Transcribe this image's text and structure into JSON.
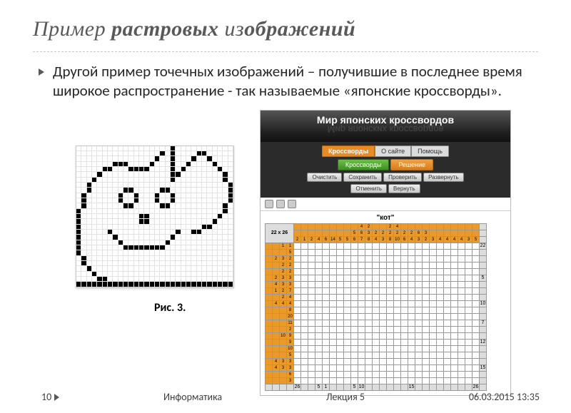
{
  "title_regular_1": "Пример ",
  "title_bold_1": "растровых",
  "title_regular_2": " из",
  "title_bold_2": "ображений",
  "body": "Другой пример точечных изображений – получившие в последнее время широкое распространение - так называемые «японские кроссворды».",
  "caption": "Рис. 3.",
  "footer": {
    "page": "10",
    "subject": "Информатика",
    "lecture": "Лекция 5",
    "datetime": "06.03.2015 13:35"
  },
  "app": {
    "site_title": "Мир японских кроссвордов",
    "nav": [
      "Кроссворды",
      "О сайте",
      "Помощь"
    ],
    "btn_krossvordy": "Кроссворды",
    "btn_reshenie": "Решение",
    "btns_small": [
      "Очистить",
      "Сохранить",
      "Проверить",
      "Развернуть"
    ],
    "btns_mini": [
      "Отменить",
      "Вернуть"
    ],
    "puzzle_title": "\"кот\"",
    "corner_label": "22 x 26",
    "rows": 22,
    "cols": 26,
    "clue_cols_depth": 4,
    "clue_rows_depth": 4,
    "col_clues_top3": [
      "",
      "",
      "",
      "",
      "",
      "",
      "",
      "",
      "",
      "4",
      "2",
      "",
      "",
      "2",
      "4",
      "",
      "",
      "",
      "",
      "",
      "",
      "",
      "",
      "",
      "",
      ""
    ],
    "col_clues_top2": [
      "",
      "",
      "",
      "",
      "",
      "",
      "",
      "",
      "5",
      "6",
      "3",
      "2",
      "2",
      "2",
      "2",
      "2",
      "2",
      "6",
      "3",
      "",
      "",
      "",
      "",
      "",
      "",
      ""
    ],
    "col_clues_top1": [
      "2",
      "1",
      "2",
      "4",
      "6",
      "14",
      "5",
      "5",
      "6",
      "7",
      "8",
      "4",
      "3",
      "8",
      "10",
      "6",
      "4",
      "3",
      "2",
      "3",
      "4",
      "4",
      "4",
      "4",
      "3",
      "5"
    ],
    "row_right_labels": [
      "22",
      "",
      "",
      "",
      "",
      "5",
      "",
      "",
      "",
      "10",
      "",
      "",
      "7",
      "",
      "",
      "12",
      "",
      "",
      "",
      "15",
      "",
      ""
    ],
    "row_clues": [
      [
        "",
        "",
        "1",
        "1"
      ],
      [
        "",
        "",
        "",
        "5"
      ],
      [
        "",
        "2",
        "3",
        "2"
      ],
      [
        "",
        "",
        "2",
        "2"
      ],
      [
        "",
        "",
        "2",
        "2"
      ],
      [
        "",
        "2",
        "3",
        "3"
      ],
      [
        "",
        "4",
        "3",
        "3"
      ],
      [
        "",
        "1",
        "2",
        "7"
      ],
      [
        "",
        "",
        "2",
        "4"
      ],
      [
        "",
        "4",
        "4",
        "4"
      ],
      [
        "",
        "",
        "",
        "8"
      ],
      [
        "",
        "",
        "",
        "20"
      ],
      [
        "",
        "",
        "",
        "11"
      ],
      [
        "",
        "",
        "",
        "2"
      ],
      [
        "",
        "",
        "10",
        "9"
      ],
      [
        "",
        "",
        "",
        "9"
      ],
      [
        "",
        "",
        "",
        "10"
      ],
      [
        "",
        "",
        "",
        "5"
      ],
      [
        "",
        "4",
        "3",
        "3"
      ],
      [
        "",
        "4",
        "3",
        "3"
      ],
      [
        "",
        "",
        "",
        "6"
      ],
      [
        "",
        "",
        "",
        "3"
      ]
    ],
    "bottom_col": [
      "26",
      "",
      "",
      "5",
      "1",
      "",
      "",
      "",
      "5",
      "10",
      "",
      "",
      "",
      "",
      "",
      "",
      "15",
      "",
      "",
      "",
      "",
      "",
      "",
      "",
      "",
      "26"
    ]
  },
  "pixel_rows": [
    "000000000000000000100000000000",
    "000000000000000010100001100000",
    "000000000000000100100010010000",
    "000000011100001000100100001000",
    "000001100011110000101000000100",
    "000010000000000000110000000010",
    "000100000000000000100000000010",
    "001000000000000000000000000001",
    "001000000110000011000000000001",
    "010000001001000100100000000001",
    "010000001001000100100000000001",
    "010000000110000011000000000010",
    "100000000000000000000000000010",
    "100000000000110000000000000100",
    "100000000000110000000000001000",
    "100000000000000000000000110000",
    "100000100000000000010011000000",
    "100000010000000000100000000000",
    "100000001000000001000000000000",
    "100000000111111110000000000000",
    "100000000000000000000000000000",
    "010000000000000000000000000000",
    "010000000000000000000000000000",
    "001000000000000000000000000000",
    "000100000000000000000000000000",
    "000011000000000000000000000000",
    "111111111111111111111111111111"
  ]
}
